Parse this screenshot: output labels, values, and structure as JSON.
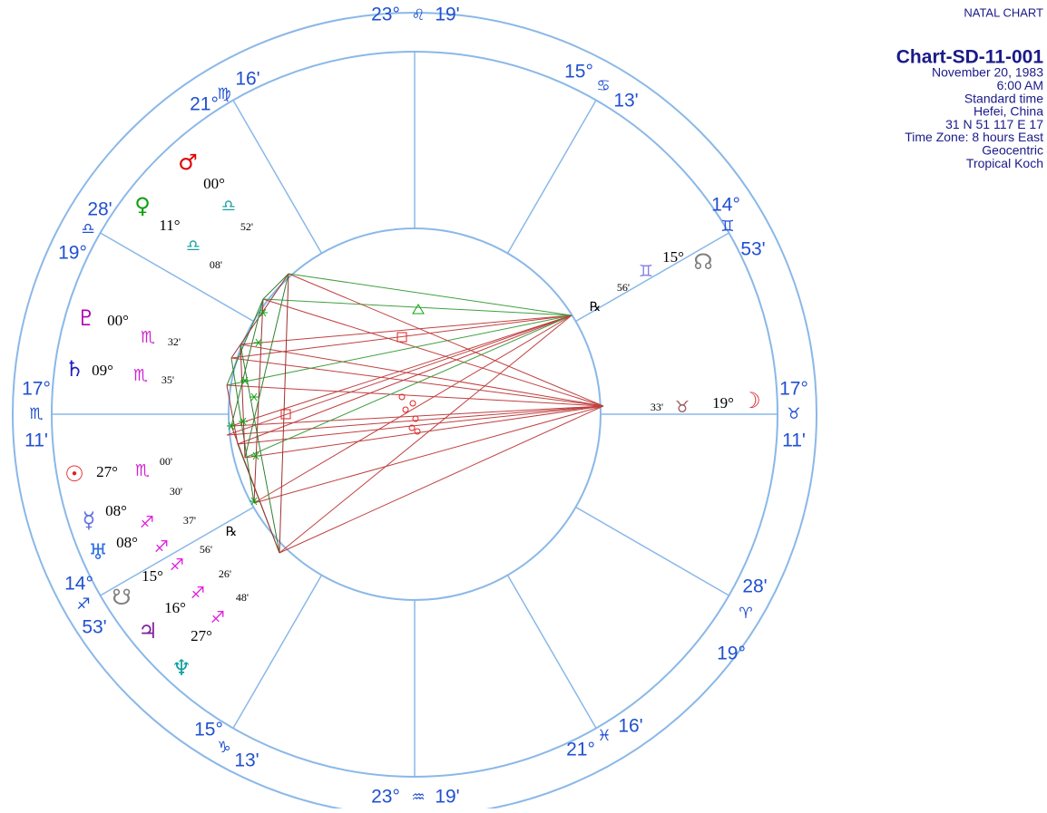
{
  "header": {
    "label": "NATAL CHART",
    "chart_name": "Chart-SD-11-001",
    "lines": [
      "November 20, 1983",
      "6:00 AM",
      "Standard time",
      "Hefei, China",
      "31 N 51    117 E 17",
      "Time Zone: 8 hours East",
      "Geocentric",
      "Tropical Koch"
    ]
  },
  "cusps": [
    {
      "degree": "23°",
      "sign": "♌",
      "minutes": "19'"
    },
    {
      "degree": "15°",
      "sign": "♋",
      "minutes": "13'"
    },
    {
      "degree": "14°",
      "sign": "♊",
      "minutes": "53'"
    },
    {
      "degree": "17°",
      "sign": "♉",
      "minutes": "11'"
    },
    {
      "degree": "19°",
      "sign": "♈",
      "minutes": "28'"
    },
    {
      "degree": "21°",
      "sign": "♓",
      "minutes": "16'"
    },
    {
      "degree": "23°",
      "sign": "♒",
      "minutes": "19'"
    },
    {
      "degree": "15°",
      "sign": "♑",
      "minutes": "13'"
    },
    {
      "degree": "14°",
      "sign": "♐",
      "minutes": "53'"
    },
    {
      "degree": "17°",
      "sign": "♏",
      "minutes": "11'"
    },
    {
      "degree": "19°",
      "sign": "♎",
      "minutes": "28'"
    },
    {
      "degree": "21°",
      "sign": "♍",
      "minutes": "16'"
    }
  ],
  "planets": [
    {
      "glyph": "♂",
      "degree": "00°",
      "sign": "♎",
      "minutes": "52'",
      "color": "#e00000",
      "sign_color": "#20a0a0"
    },
    {
      "glyph": "♀",
      "degree": "11°",
      "sign": "♎",
      "minutes": "08'",
      "color": "#10a010",
      "sign_color": "#20a0a0"
    },
    {
      "glyph": "♇",
      "degree": "00°",
      "sign": "♏",
      "minutes": "32'",
      "color": "#b000b0",
      "sign_color": "#d020d0"
    },
    {
      "glyph": "♄",
      "degree": "09°",
      "sign": "♏",
      "minutes": "35'",
      "color": "#2020c0",
      "sign_color": "#d020d0"
    },
    {
      "glyph": "☉",
      "degree": "27°",
      "sign": "♏",
      "minutes": "00'",
      "color": "#e02020",
      "sign_color": "#d020d0"
    },
    {
      "glyph": "☿",
      "degree": "08°",
      "sign": "♐",
      "minutes": "30'",
      "color": "#6070e0",
      "sign_color": "#e020e0"
    },
    {
      "glyph": "♅",
      "degree": "08°",
      "sign": "♐",
      "minutes": "37'",
      "color": "#3070e0",
      "sign_color": "#e020e0"
    },
    {
      "glyph": "☋",
      "degree": "15°",
      "sign": "♐",
      "minutes": "56'",
      "color": "#808080",
      "sign_color": "#e020e0"
    },
    {
      "glyph": "♃",
      "degree": "16°",
      "sign": "♐",
      "minutes": "26'",
      "color": "#8020a0",
      "sign_color": "#e020e0"
    },
    {
      "glyph": "♆",
      "degree": "27°",
      "sign": "♐",
      "minutes": "48'",
      "color": "#10a0a0",
      "sign_color": "#e020e0"
    },
    {
      "glyph": "☊",
      "degree": "15°",
      "sign": "♊",
      "minutes": "56'",
      "color": "#808080",
      "sign_color": "#8080e0"
    },
    {
      "glyph": "☽",
      "degree": "19°",
      "sign": "♉",
      "minutes": "33'",
      "color": "#e02020",
      "sign_color": "#a06060"
    }
  ],
  "retrograde": [
    "℞",
    "℞"
  ]
}
